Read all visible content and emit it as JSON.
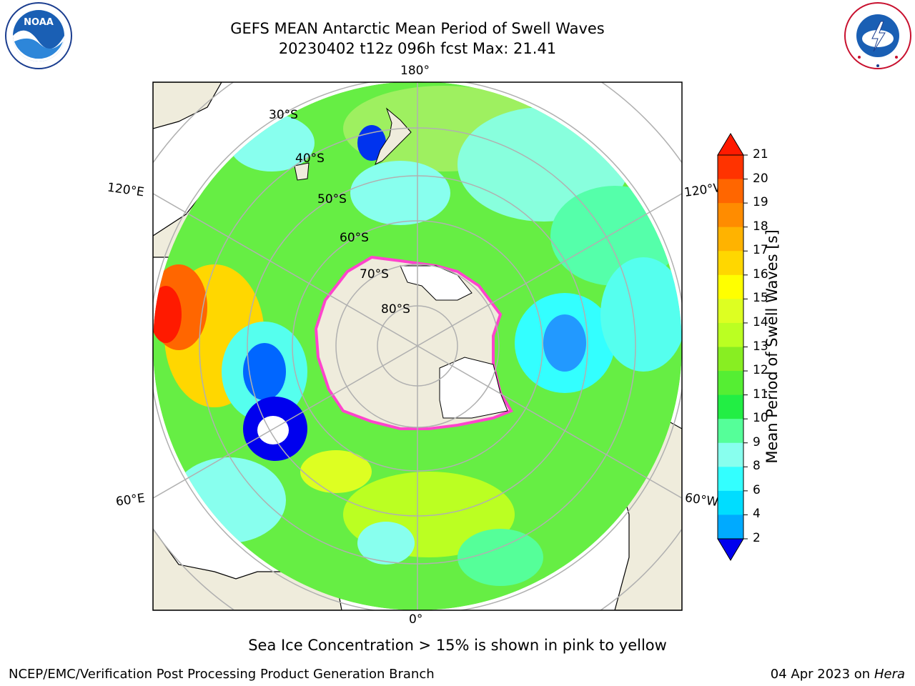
{
  "header": {
    "title_line1": "GEFS MEAN Antarctic Mean Period of Swell Waves",
    "title_line2": "20230402 t12z 096h fcst   Max: 21.41"
  },
  "logos": {
    "left": "noaa-logo",
    "right": "nws-logo"
  },
  "map": {
    "longitude_labels": {
      "top": "180°",
      "bottom": "0°",
      "left_upper": "120°E",
      "right_upper": "120°W",
      "left_lower": "60°E",
      "right_lower": "60°W"
    },
    "latitude_labels": [
      "30°S",
      "40°S",
      "50°S",
      "60°S",
      "70°S",
      "80°S"
    ]
  },
  "colorbar": {
    "label": "Mean Period of Swell Waves [s]",
    "ticks": [
      "21",
      "20",
      "19",
      "18",
      "17",
      "16",
      "15",
      "14",
      "13",
      "12",
      "11",
      "10",
      "9",
      "8",
      "6",
      "4",
      "2"
    ],
    "colors": [
      "#ff1a00",
      "#ff3300",
      "#ff6600",
      "#ff8c00",
      "#ffb300",
      "#ffd700",
      "#ffff00",
      "#ddff22",
      "#bbff22",
      "#88ee22",
      "#55ee33",
      "#22ee44",
      "#55ff99",
      "#88ffee",
      "#33ffff",
      "#00ddff",
      "#00aaff",
      "#0066ff",
      "#0000ee"
    ]
  },
  "note": "Sea Ice Concentration > 15% is shown in pink to yellow",
  "footer": {
    "left": "NCEP/EMC/Verification Post Processing Product Generation Branch",
    "right_date": "04 Apr 2023 on",
    "right_host": "Hera"
  }
}
